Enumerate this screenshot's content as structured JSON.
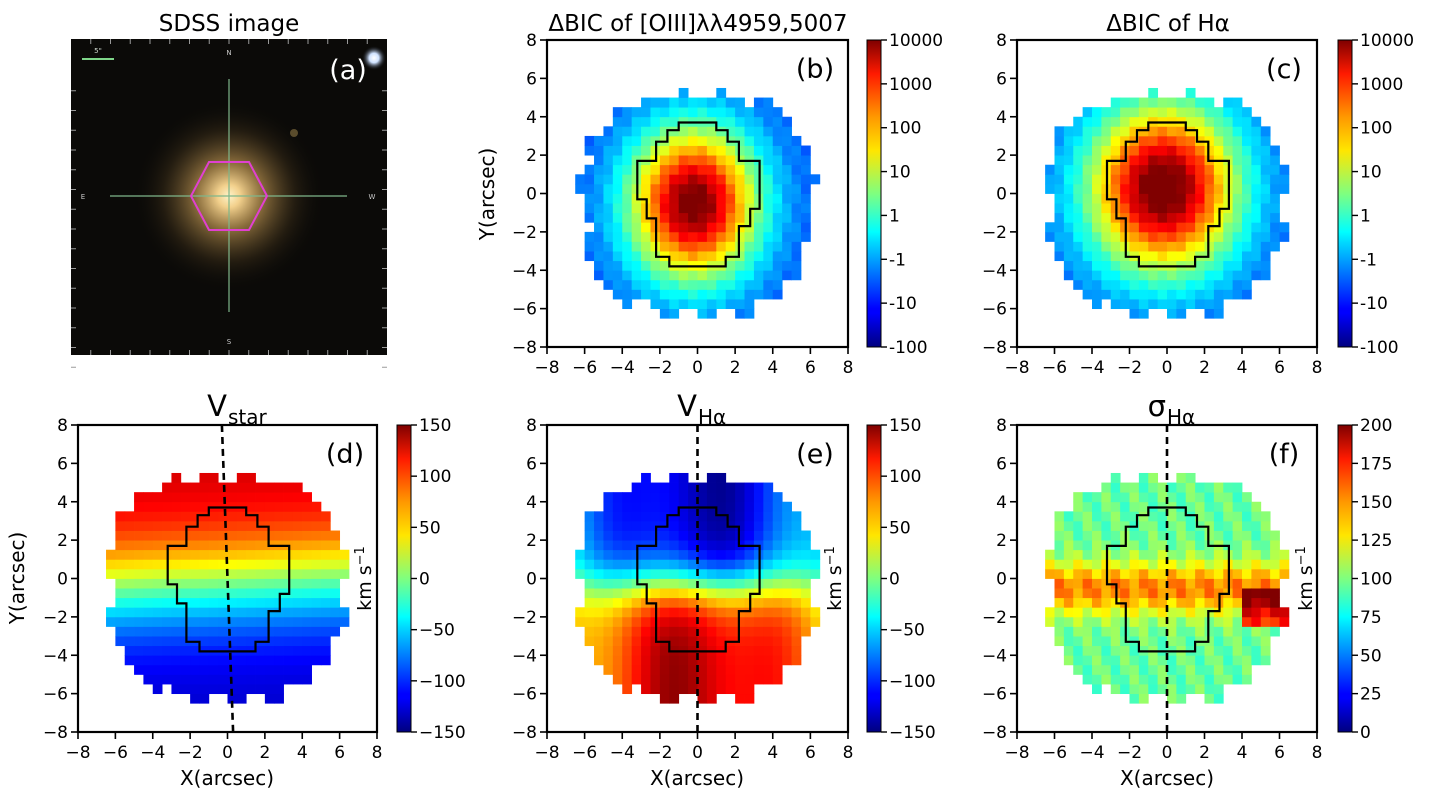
{
  "sdss_panel": {
    "title": "SDSS image",
    "label": "(a)",
    "scale_label": "5\"",
    "compass": {
      "n": "N",
      "s": "S",
      "e": "E",
      "w": "W"
    }
  },
  "chart_data": [
    {
      "id": "b",
      "type": "heatmap",
      "label": "(b)",
      "title": "ΔBIC of [OIII]λλ4959,5007",
      "xlabel": "",
      "ylabel": "Y(arcsec)",
      "xlim": [
        -8,
        8
      ],
      "ylim": [
        -8,
        8
      ],
      "xticks": [
        -8,
        -6,
        -4,
        -2,
        0,
        2,
        4,
        6,
        8
      ],
      "yticks": [
        -8,
        -6,
        -4,
        -2,
        0,
        2,
        4,
        6,
        8
      ],
      "colorbar": {
        "scale": "symlog",
        "ticks": [
          "10000",
          "1000",
          "100",
          "10",
          "1",
          "-1",
          "-10",
          "-100"
        ],
        "label": ""
      },
      "field": {
        "kind": "bic",
        "cx": -0.2,
        "cy": -0.5,
        "sx": 2.4,
        "sy": 2.8,
        "amp": 4.2,
        "xmin": -6.1,
        "xmax": 6.1,
        "ymin": -6.3,
        "ymax": 5.1
      },
      "contour": true,
      "pa_line": false
    },
    {
      "id": "c",
      "type": "heatmap",
      "label": "(c)",
      "title": "ΔBIC of Hα",
      "xlabel": "",
      "ylabel": "",
      "xlim": [
        -8,
        8
      ],
      "ylim": [
        -8,
        8
      ],
      "xticks": [
        -8,
        -6,
        -4,
        -2,
        0,
        2,
        4,
        6,
        8
      ],
      "yticks": [
        -8,
        -6,
        -4,
        -2,
        0,
        2,
        4,
        6,
        8
      ],
      "colorbar": {
        "scale": "symlog",
        "ticks": [
          "10000",
          "1000",
          "100",
          "10",
          "1",
          "-1",
          "-10",
          "-100"
        ],
        "label": ""
      },
      "field": {
        "kind": "bic",
        "cx": -0.2,
        "cy": 0.3,
        "sx": 2.8,
        "sy": 3.1,
        "amp": 4.4,
        "xmin": -6.3,
        "xmax": 6.3,
        "ymin": -6.3,
        "ymax": 5.1
      },
      "contour": true,
      "pa_line": false
    },
    {
      "id": "d",
      "type": "heatmap",
      "label": "(d)",
      "title": "V",
      "title_sub": "star",
      "xlabel": "X(arcsec)",
      "ylabel": "Y(arcsec)",
      "xlim": [
        -8,
        8
      ],
      "ylim": [
        -8,
        8
      ],
      "xticks": [
        -8,
        -6,
        -4,
        -2,
        0,
        2,
        4,
        6,
        8
      ],
      "yticks": [
        -8,
        -6,
        -4,
        -2,
        0,
        2,
        4,
        6,
        8
      ],
      "colorbar": {
        "scale": "linear",
        "min": -150,
        "max": 150,
        "ticks": [
          150,
          100,
          50,
          0,
          -50,
          -100,
          -150
        ],
        "label": "km s",
        "label_sup": "−1"
      },
      "field": {
        "kind": "velocity",
        "vmax": 130,
        "xmin": -6.3,
        "xmax": 6.3,
        "ymin": -6.3,
        "ymax": 5.3
      },
      "contour": true,
      "pa_line": true,
      "pa_top": [
        -0.3,
        8
      ],
      "pa_bottom": [
        0.3,
        -8
      ]
    },
    {
      "id": "e",
      "type": "heatmap",
      "label": "(e)",
      "title": "V",
      "title_sub": "Hα",
      "xlabel": "X(arcsec)",
      "ylabel": "",
      "xlim": [
        -8,
        8
      ],
      "ylim": [
        -8,
        8
      ],
      "xticks": [
        -8,
        -6,
        -4,
        -2,
        0,
        2,
        4,
        6,
        8
      ],
      "yticks": [
        -8,
        -6,
        -4,
        -2,
        0,
        2,
        4,
        6,
        8
      ],
      "colorbar": {
        "scale": "linear",
        "min": -150,
        "max": 150,
        "ticks": [
          150,
          100,
          50,
          0,
          -50,
          -100,
          -150
        ],
        "label": "km s",
        "label_sup": "−1"
      },
      "field": {
        "kind": "hvel",
        "vmax": 135,
        "xmin": -6.3,
        "xmax": 6.3,
        "ymin": -6.3,
        "ymax": 5.3
      },
      "contour": true,
      "pa_line": true,
      "pa_top": [
        0,
        8
      ],
      "pa_bottom": [
        0,
        -8
      ]
    },
    {
      "id": "f",
      "type": "heatmap",
      "label": "(f)",
      "title": "σ",
      "title_sub": "Hα",
      "xlabel": "X(arcsec)",
      "ylabel": "",
      "xlim": [
        -8,
        8
      ],
      "ylim": [
        -8,
        8
      ],
      "xticks": [
        -8,
        -6,
        -4,
        -2,
        0,
        2,
        4,
        6,
        8
      ],
      "yticks": [
        -8,
        -6,
        -4,
        -2,
        0,
        2,
        4,
        6,
        8
      ],
      "colorbar": {
        "scale": "linear",
        "min": 0,
        "max": 200,
        "ticks": [
          200,
          175,
          150,
          125,
          100,
          75,
          50,
          25,
          0
        ],
        "label": "km s",
        "label_sup": "−1"
      },
      "field": {
        "kind": "sigma",
        "xmin": -6.3,
        "xmax": 6.3,
        "ymin": -6.3,
        "ymax": 5.3
      },
      "contour": true,
      "pa_line": true,
      "pa_top": [
        0,
        8
      ],
      "pa_bottom": [
        0,
        -8
      ]
    }
  ],
  "contour_outline": [
    [
      -1.0,
      3.7
    ],
    [
      1.0,
      3.7
    ],
    [
      1.0,
      3.3
    ],
    [
      1.6,
      3.3
    ],
    [
      1.6,
      2.7
    ],
    [
      2.2,
      2.7
    ],
    [
      2.2,
      1.7
    ],
    [
      3.3,
      1.7
    ],
    [
      3.3,
      -0.8
    ],
    [
      2.8,
      -0.8
    ],
    [
      2.8,
      -1.7
    ],
    [
      2.2,
      -1.7
    ],
    [
      2.2,
      -3.3
    ],
    [
      1.5,
      -3.3
    ],
    [
      1.5,
      -3.8
    ],
    [
      -1.5,
      -3.8
    ],
    [
      -1.5,
      -3.3
    ],
    [
      -2.2,
      -3.3
    ],
    [
      -2.2,
      -1.3
    ],
    [
      -2.7,
      -1.3
    ],
    [
      -2.7,
      -0.3
    ],
    [
      -3.2,
      -0.3
    ],
    [
      -3.2,
      1.7
    ],
    [
      -2.2,
      1.7
    ],
    [
      -2.2,
      2.7
    ],
    [
      -1.6,
      2.7
    ],
    [
      -1.6,
      3.3
    ],
    [
      -1.0,
      3.3
    ]
  ]
}
